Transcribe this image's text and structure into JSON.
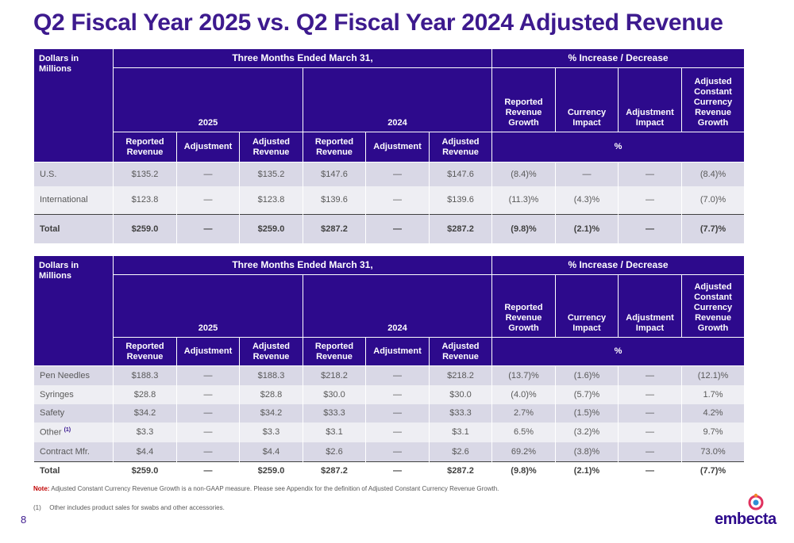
{
  "title": "Q2 Fiscal Year 2025 vs. Q2 Fiscal Year 2024 Adjusted Revenue",
  "headers": {
    "corner": "Dollars in Millions",
    "period": "Three Months Ended March 31,",
    "pct": "% Increase / Decrease",
    "y2025": "2025",
    "y2024": "2024",
    "reported_growth": "Reported Revenue Growth",
    "currency_impact": "Currency Impact",
    "adjustment_impact": "Adjustment Impact",
    "acc_growth": "Adjusted Constant Currency Revenue Growth",
    "reported_revenue": "Reported Revenue",
    "adjustment": "Adjustment",
    "adjusted_revenue": "Adjusted Revenue",
    "pct_sign": "%"
  },
  "table1": {
    "rows": [
      {
        "label": "U.S.",
        "cells": [
          "$135.2",
          "—",
          "$135.2",
          "$147.6",
          "—",
          "$147.6",
          "(8.4)%",
          "—",
          "—",
          "(8.4)%"
        ]
      },
      {
        "label": "International",
        "cells": [
          "$123.8",
          "—",
          "$123.8",
          "$139.6",
          "—",
          "$139.6",
          "(11.3)%",
          "(4.3)%",
          "—",
          "(7.0)%"
        ]
      },
      {
        "label": "Total",
        "cells": [
          "$259.0",
          "—",
          "$259.0",
          "$287.2",
          "—",
          "$287.2",
          "(9.8)%",
          "(2.1)%",
          "—",
          "(7.7)%"
        ]
      }
    ]
  },
  "table2": {
    "rows": [
      {
        "label": "Pen Needles",
        "cells": [
          "$188.3",
          "—",
          "$188.3",
          "$218.2",
          "—",
          "$218.2",
          "(13.7)%",
          "(1.6)%",
          "—",
          "(12.1)%"
        ]
      },
      {
        "label": "Syringes",
        "cells": [
          "$28.8",
          "—",
          "$28.8",
          "$30.0",
          "—",
          "$30.0",
          "(4.0)%",
          "(5.7)%",
          "—",
          "1.7%"
        ]
      },
      {
        "label": "Safety",
        "cells": [
          "$34.2",
          "—",
          "$34.2",
          "$33.3",
          "—",
          "$33.3",
          "2.7%",
          "(1.5)%",
          "—",
          "4.2%"
        ]
      },
      {
        "label": "Other",
        "sup": "(1)",
        "cells": [
          "$3.3",
          "—",
          "$3.3",
          "$3.1",
          "—",
          "$3.1",
          "6.5%",
          "(3.2)%",
          "—",
          "9.7%"
        ]
      },
      {
        "label": "Contract Mfr.",
        "cells": [
          "$4.4",
          "—",
          "$4.4",
          "$2.6",
          "—",
          "$2.6",
          "69.2%",
          "(3.8)%",
          "—",
          "73.0%"
        ]
      },
      {
        "label": "Total",
        "cells": [
          "$259.0",
          "—",
          "$259.0",
          "$287.2",
          "—",
          "$287.2",
          "(9.8)%",
          "(2.1)%",
          "—",
          "(7.7)%"
        ]
      }
    ]
  },
  "note": {
    "label": "Note:",
    "text": "Adjusted Constant Currency Revenue Growth is a non-GAAP measure. Please see Appendix for the definition of Adjusted Constant Currency Revenue Growth."
  },
  "footnote": {
    "num": "(1)",
    "text": "Other includes product sales for swabs and other accessories."
  },
  "page_number": "8",
  "logo": {
    "text": "embecta",
    "tm": "™"
  },
  "colors": {
    "header_bg": "#2d0a8c",
    "title": "#3d1a8e",
    "row_shade": "#d9d8e6",
    "note_label": "#c00000"
  }
}
